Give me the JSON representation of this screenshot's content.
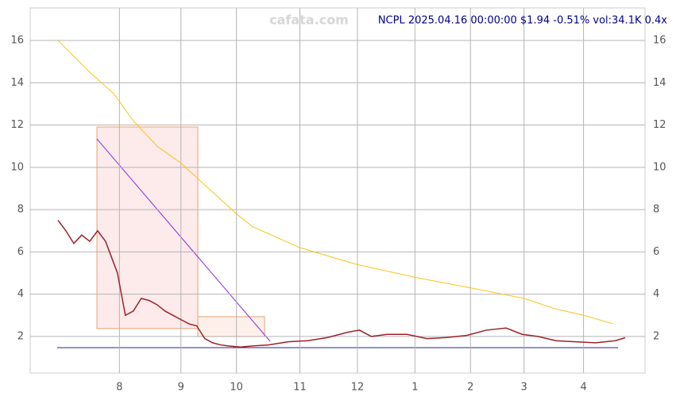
{
  "chart_data": {
    "type": "line",
    "title": "NCPL 2025.04.16 00:00:00 $1.94 -0.51% vol:34.1K 0.4x",
    "watermark": "cafata.com",
    "xlim": [
      0,
      310
    ],
    "xticks": [
      {
        "value": 45,
        "label": "8"
      },
      {
        "value": 76,
        "label": "9"
      },
      {
        "value": 104,
        "label": "10"
      },
      {
        "value": 136,
        "label": "11"
      },
      {
        "value": 165,
        "label": "12"
      },
      {
        "value": 194,
        "label": "1"
      },
      {
        "value": 222,
        "label": "2"
      },
      {
        "value": 249,
        "label": "3"
      },
      {
        "value": 279,
        "label": "4"
      }
    ],
    "ylim": [
      0.27,
      17.54
    ],
    "yticks": [
      2,
      4,
      6,
      8,
      10,
      12,
      14,
      16
    ],
    "grid": true,
    "series": [
      {
        "color": "#a0202a",
        "x": [
          14,
          18,
          22,
          26,
          30,
          34,
          38,
          42,
          44,
          46,
          48,
          52,
          56,
          60,
          64,
          68,
          72,
          76,
          80,
          84,
          88,
          92,
          96,
          100,
          106,
          112,
          120,
          130,
          140,
          150,
          160,
          166,
          172,
          180,
          190,
          200,
          210,
          220,
          230,
          240,
          248,
          256,
          265,
          275,
          285,
          295,
          300
        ],
        "values": [
          7.5,
          7.0,
          6.4,
          6.8,
          6.5,
          7.0,
          6.5,
          5.5,
          5.0,
          4.0,
          3.0,
          3.2,
          3.8,
          3.7,
          3.5,
          3.2,
          3.0,
          2.8,
          2.6,
          2.5,
          1.9,
          1.7,
          1.6,
          1.55,
          1.5,
          1.55,
          1.6,
          1.75,
          1.8,
          1.95,
          2.2,
          2.3,
          2.0,
          2.1,
          2.1,
          1.9,
          1.95,
          2.05,
          2.3,
          2.4,
          2.1,
          2.0,
          1.8,
          1.75,
          1.7,
          1.8,
          1.94
        ]
      },
      {
        "color": "#f5c518",
        "x": [
          14,
          30,
          42,
          52,
          64,
          76,
          90,
          104,
          112,
          136,
          165,
          194,
          222,
          249,
          265,
          279,
          294
        ],
        "values": [
          16.0,
          14.5,
          13.5,
          12.2,
          11.0,
          10.2,
          9.0,
          7.8,
          7.2,
          6.2,
          5.4,
          4.8,
          4.3,
          3.8,
          3.3,
          3.0,
          2.6
        ]
      }
    ]
  }
}
